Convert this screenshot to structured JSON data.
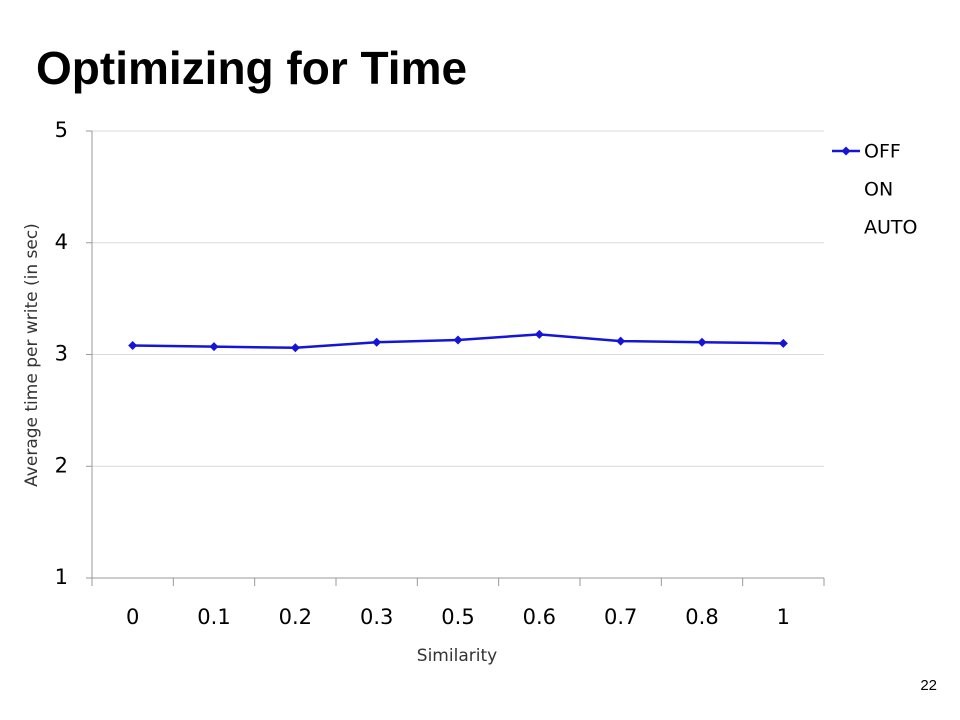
{
  "page_number": "22",
  "chart_data": {
    "type": "line",
    "title": "Optimizing for Time",
    "x_label": "Similarity",
    "y_label": "Average time per write (in sec)",
    "categories": [
      "0",
      "0.1",
      "0.2",
      "0.3",
      "0.5",
      "0.6",
      "0.7",
      "0.8",
      "1"
    ],
    "series": [
      {
        "name": "OFF",
        "color": "#1515d8",
        "values": [
          3.08,
          3.07,
          3.06,
          3.11,
          3.13,
          3.18,
          3.12,
          3.11,
          3.1
        ]
      },
      {
        "name": "ON",
        "values": [
          null,
          null,
          null,
          null,
          null,
          null,
          null,
          null,
          null
        ]
      },
      {
        "name": "AUTO",
        "values": [
          null,
          null,
          null,
          null,
          null,
          null,
          null,
          null,
          null
        ]
      }
    ],
    "ylim": [
      1,
      5
    ],
    "yticks": [
      1,
      2,
      3,
      4,
      5
    ],
    "grid": true,
    "legend": "right"
  }
}
